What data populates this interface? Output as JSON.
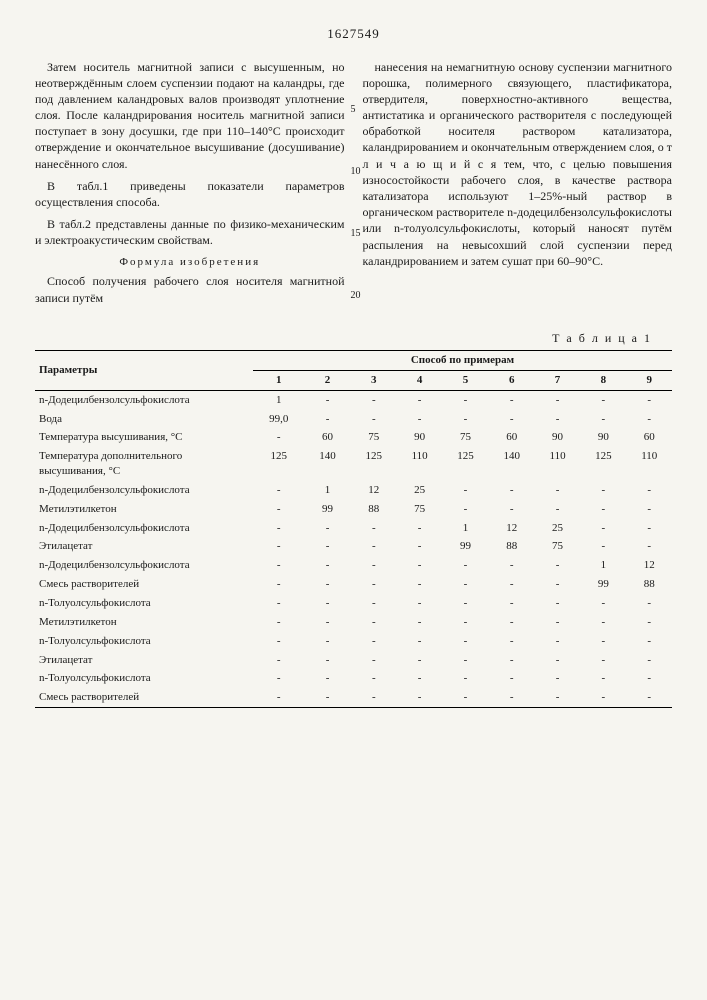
{
  "patentNumber": "1627549",
  "colLeft": {
    "p1": "Затем носитель магнитной записи с высушенным, но неотверждённым слоем суспензии подают на каландры, где под давлением каландровых валов производят уплотнение слоя. После каландрирования носитель магнитной записи поступает в зону досушки, где при 110–140°С происходит отверждение и окончательное высушивание (досушивание) нанесённого слоя.",
    "p2": "В табл.1 приведены показатели параметров осуществления способа.",
    "p3": "В табл.2 представлены данные по физико-механическим и электроакустическим свойствам.",
    "formula": "Формула изобретения",
    "p4": "Способ получения рабочего слоя носителя магнитной записи путём"
  },
  "colRight": {
    "p1": "нанесения на немагнитную основу суспензии магнитного порошка, полимерного связующего, пластификатора, отвердителя, поверхностно-активного вещества, антистатика и органического растворителя с последующей обработкой носителя раствором катализатора, каландрированием и окончательным отверждением слоя, о т л и ч а ю щ и й с я  тем, что, с целью повышения износостойкости рабочего слоя, в качестве раствора катализатора используют 1–25%-ный раствор в органическом растворителе n-додецилбензолсульфокислоты или n-толуолсульфокислоты, который наносят путём распыления на невысохший слой суспензии перед каландрированием и затем сушат при 60–90°С."
  },
  "lineNums": {
    "l5": "5",
    "l10": "10",
    "l15": "15",
    "l20": "20"
  },
  "tableLabel": "Т а б л и ц а  1",
  "table": {
    "paramHead": "Параметры",
    "methodHead": "Способ по примерам",
    "cols": [
      "1",
      "2",
      "3",
      "4",
      "5",
      "6",
      "7",
      "8",
      "9"
    ],
    "rows": [
      {
        "label": "n-Додецилбензолсульфокислота",
        "vals": [
          "1",
          "-",
          "-",
          "-",
          "-",
          "-",
          "-",
          "-",
          "-"
        ]
      },
      {
        "label": "Вода",
        "vals": [
          "99,0",
          "-",
          "-",
          "-",
          "-",
          "-",
          "-",
          "-",
          "-"
        ]
      },
      {
        "label": "Температура высушивания, °С",
        "vals": [
          "-",
          "60",
          "75",
          "90",
          "75",
          "60",
          "90",
          "90",
          "60"
        ]
      },
      {
        "label": "Температура дополнительного высушивания, °С",
        "vals": [
          "125",
          "140",
          "125",
          "110",
          "125",
          "140",
          "110",
          "125",
          "110"
        ]
      },
      {
        "label": "n-Додецилбензолсульфокислота",
        "vals": [
          "-",
          "1",
          "12",
          "25",
          "-",
          "-",
          "-",
          "-",
          "-"
        ]
      },
      {
        "label": "Метилэтилкетон",
        "vals": [
          "-",
          "99",
          "88",
          "75",
          "-",
          "-",
          "-",
          "-",
          "-"
        ]
      },
      {
        "label": "n-Додецилбензолсульфокислота",
        "vals": [
          "-",
          "-",
          "-",
          "-",
          "1",
          "12",
          "25",
          "-",
          "-"
        ]
      },
      {
        "label": "Этилацетат",
        "vals": [
          "-",
          "-",
          "-",
          "-",
          "99",
          "88",
          "75",
          "-",
          "-"
        ]
      },
      {
        "label": "n-Додецилбензолсульфокислота",
        "vals": [
          "-",
          "-",
          "-",
          "-",
          "-",
          "-",
          "-",
          "1",
          "12"
        ]
      },
      {
        "label": "Смесь растворителей",
        "vals": [
          "-",
          "-",
          "-",
          "-",
          "-",
          "-",
          "-",
          "99",
          "88"
        ]
      },
      {
        "label": "n-Толуолсульфокислота",
        "vals": [
          "-",
          "-",
          "-",
          "-",
          "-",
          "-",
          "-",
          "-",
          "-"
        ]
      },
      {
        "label": "Метилэтилкетон",
        "vals": [
          "-",
          "-",
          "-",
          "-",
          "-",
          "-",
          "-",
          "-",
          "-"
        ]
      },
      {
        "label": "n-Толуолсульфокислота",
        "vals": [
          "-",
          "-",
          "-",
          "-",
          "-",
          "-",
          "-",
          "-",
          "-"
        ]
      },
      {
        "label": "Этилацетат",
        "vals": [
          "-",
          "-",
          "-",
          "-",
          "-",
          "-",
          "-",
          "-",
          "-"
        ]
      },
      {
        "label": "n-Толуолсульфокислота",
        "vals": [
          "-",
          "-",
          "-",
          "-",
          "-",
          "-",
          "-",
          "-",
          "-"
        ]
      },
      {
        "label": "Смесь растворителей",
        "vals": [
          "-",
          "-",
          "-",
          "-",
          "-",
          "-",
          "-",
          "-",
          "-"
        ]
      }
    ]
  }
}
